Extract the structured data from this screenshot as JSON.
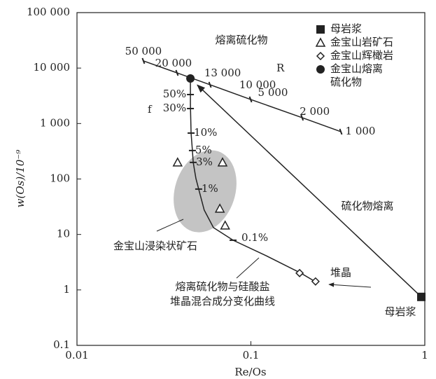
{
  "chart_data": {
    "type": "scatter",
    "xlabel": "Re/Os",
    "ylabel": "w(Os)/10⁻⁹",
    "log_x": true,
    "log_y": true,
    "xlim": [
      0.01,
      1
    ],
    "ylim": [
      0.1,
      100000
    ],
    "xticks": [
      0.01,
      0.1,
      1
    ],
    "yticks": [
      {
        "value": 100000,
        "label": "100 000"
      },
      {
        "value": 10000,
        "label": "10 000"
      },
      {
        "value": 1000,
        "label": "1 000"
      },
      100,
      10,
      1,
      0.1
    ],
    "series": [
      {
        "name": "母岩浆",
        "marker": "square",
        "color": "#222222",
        "x": [
          0.955
        ],
        "values": [
          0.748
        ]
      },
      {
        "name": "金宝山岩矿石",
        "marker": "triangle",
        "color": "#222222",
        "x": [
          0.0379,
          0.0687,
          0.0663,
          0.0711
        ],
        "values": [
          199,
          199,
          29.2,
          14.5
        ]
      },
      {
        "name": "金宝山辉橄岩",
        "marker": "diamond",
        "color": "#222222",
        "x": [
          0.1906,
          0.2353
        ],
        "values": [
          2.01,
          1.42
        ]
      },
      {
        "name": "金宝山熔离硫化物",
        "marker": "circle",
        "color": "#222222",
        "x": [
          0.0449
        ],
        "values": [
          6500
        ]
      }
    ],
    "lines": [
      {
        "name": "R",
        "color": "#222222",
        "x": [
          0.0241,
          0.0376,
          0.0582,
          0.0996,
          0.197,
          0.329
        ],
        "values": [
          13460,
          8200,
          5010,
          2720,
          1277,
          714
        ],
        "point_labels": [
          "50 000",
          "20 000",
          "13 000",
          "10 000",
          "2 000",
          "1 000"
        ]
      },
      {
        "name": "f",
        "color": "#222222",
        "x": [
          0.0449,
          0.0449,
          0.0453,
          0.0461,
          0.0466,
          0.0483,
          0.0501,
          0.0539,
          0.0609,
          0.079,
          0.1219,
          0.1936,
          0.2373
        ],
        "values": [
          6500,
          2154,
          673,
          326,
          199,
          102,
          65.8,
          27.5,
          13.3,
          7.87,
          4.16,
          2.01,
          1.38
        ]
      }
    ],
    "curve_ticks": {
      "x": [
        0.0449,
        0.0449,
        0.0453,
        0.0461,
        0.0466,
        0.0501,
        0.079
      ],
      "values": [
        3330,
        1862,
        673,
        326,
        199,
        65.8,
        7.87
      ],
      "labels": [
        "50%",
        "30%",
        "10%",
        "5%",
        "3%",
        "1%",
        "0.1%"
      ]
    },
    "annotations": [
      "熔离硫化物",
      "硫化物熔离",
      "金宝山浸染状矿石",
      "熔离硫化物与硅酸盐",
      "堆晶混合成分变化曲线",
      "堆晶",
      "母岩浆",
      "5 000"
    ]
  }
}
